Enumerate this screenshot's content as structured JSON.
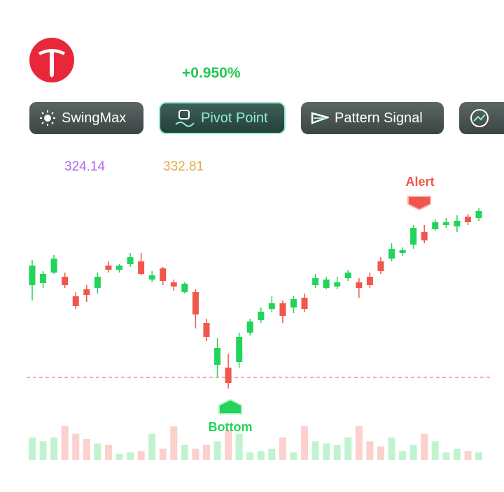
{
  "header": {
    "change": "+0.950%"
  },
  "tabs": [
    "SwingMax",
    "Pivot Point",
    "Pattern Signal"
  ],
  "indicators": [
    "324.14",
    "332.81"
  ],
  "signals": {
    "alert": "Alert",
    "bottom": "Bottom"
  },
  "chart_data": {
    "type": "candlestick",
    "up_color": "#22d45a",
    "down_color": "#f0564c",
    "open": [
      292,
      295,
      310,
      304,
      276,
      286,
      288,
      320,
      314,
      322,
      326,
      300,
      316,
      296,
      282,
      282,
      238,
      178,
      174,
      182,
      224,
      242,
      258,
      266,
      260,
      274,
      292,
      288,
      290,
      302,
      296,
      304,
      326,
      330,
      338,
      350,
      368,
      372,
      378,
      376,
      390,
      388
    ],
    "high": [
      328,
      312,
      335,
      310,
      282,
      292,
      310,
      326,
      322,
      338,
      338,
      312,
      318,
      300,
      296,
      286,
      244,
      216,
      194,
      224,
      244,
      260,
      276,
      270,
      276,
      280,
      308,
      304,
      304,
      314,
      302,
      310,
      332,
      352,
      346,
      378,
      378,
      386,
      388,
      392,
      394,
      402
    ],
    "low": [
      270,
      288,
      308,
      288,
      258,
      268,
      280,
      310,
      310,
      318,
      306,
      296,
      292,
      284,
      280,
      230,
      212,
      160,
      144,
      174,
      220,
      238,
      254,
      238,
      252,
      254,
      288,
      286,
      286,
      298,
      274,
      288,
      308,
      326,
      334,
      344,
      352,
      370,
      374,
      368,
      378,
      384
    ],
    "close": [
      320,
      308,
      330,
      292,
      262,
      278,
      304,
      314,
      320,
      332,
      308,
      306,
      298,
      290,
      294,
      250,
      218,
      202,
      152,
      218,
      240,
      254,
      266,
      248,
      272,
      258,
      302,
      300,
      296,
      310,
      288,
      292,
      312,
      344,
      342,
      374,
      356,
      382,
      382,
      384,
      382,
      398
    ],
    "volume": [
      30,
      25,
      30,
      45,
      35,
      28,
      22,
      20,
      8,
      10,
      12,
      35,
      15,
      45,
      20,
      15,
      20,
      25,
      40,
      35,
      10,
      12,
      15,
      30,
      10,
      45,
      25,
      22,
      20,
      30,
      45,
      25,
      18,
      30,
      12,
      20,
      35,
      25,
      10,
      15,
      12,
      10
    ]
  }
}
